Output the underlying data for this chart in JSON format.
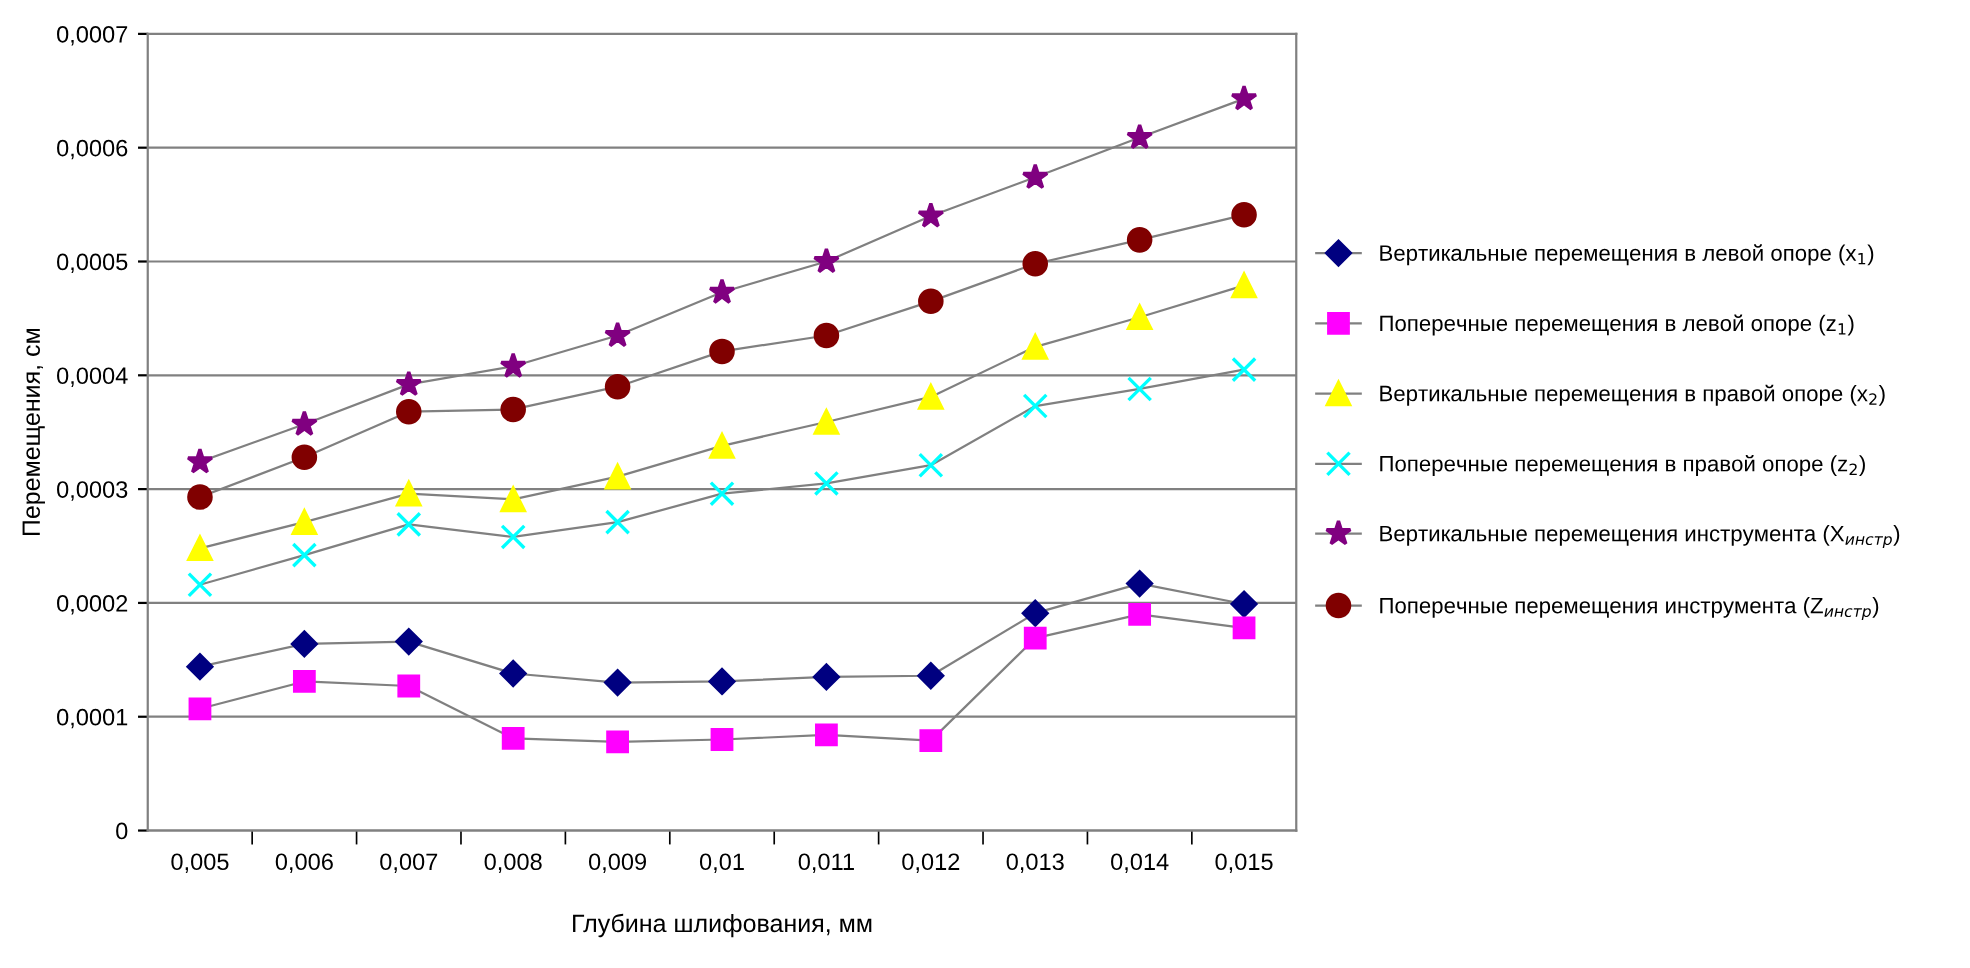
{
  "chart_data": {
    "type": "line",
    "xlabel": "Глубина шлифования, мм",
    "ylabel": "Перемещения, см",
    "categories": [
      "0,005",
      "0,006",
      "0,007",
      "0,008",
      "0,009",
      "0,01",
      "0,011",
      "0,012",
      "0,013",
      "0,014",
      "0,015"
    ],
    "series": [
      {
        "name": "Вертикальные перемещения в левой опоре (x$_{1}$)",
        "color": "#000080",
        "marker": "diamond",
        "values": [
          0.000144,
          0.000164,
          0.000166,
          0.000138,
          0.00013,
          0.000131,
          0.000135,
          0.000136,
          0.000191,
          0.000217,
          0.000199
        ]
      },
      {
        "name": "Поперечные перемещения в левой опоре (z$_{1}$)",
        "color": "#ff00ff",
        "marker": "square",
        "values": [
          0.000107,
          0.000131,
          0.000127,
          8.1e-05,
          7.8e-05,
          8e-05,
          8.4e-05,
          7.9e-05,
          0.000169,
          0.00019,
          0.000178
        ]
      },
      {
        "name": "Вертикальные перемещения в правой опоре (x$_{2}$)",
        "color": "#ffff00",
        "marker": "triangle",
        "values": [
          0.000248,
          0.000271,
          0.000296,
          0.000291,
          0.000311,
          0.000338,
          0.000359,
          0.000381,
          0.000425,
          0.000451,
          0.000479
        ]
      },
      {
        "name": "Поперечные перемещения в правой опоре (z$_{2}$)",
        "color": "#00ffff",
        "marker": "cross",
        "values": [
          0.000216,
          0.000242,
          0.000269,
          0.000258,
          0.000271,
          0.000296,
          0.000305,
          0.000321,
          0.000373,
          0.000388,
          0.000405
        ]
      },
      {
        "name": "Вертикальные перемещения инструмента (X$_{инстр}$)",
        "color": "#800080",
        "marker": "star",
        "values": [
          0.000324,
          0.000357,
          0.000392,
          0.000408,
          0.000435,
          0.000473,
          0.0005,
          0.00054,
          0.000574,
          0.000609,
          0.000643
        ]
      },
      {
        "name": "Поперечные перемещения инструмента (Z$_{инстр}$)",
        "color": "#800000",
        "marker": "circle",
        "values": [
          0.000293,
          0.000328,
          0.000368,
          0.00037,
          0.00039,
          0.000421,
          0.000435,
          0.000465,
          0.000498,
          0.000519,
          0.000541
        ]
      }
    ],
    "ylim": [
      0,
      0.0007
    ],
    "yticks": [
      0,
      {
        "value": 0.0001,
        "label": "0,0001"
      },
      {
        "value": 0.0002,
        "label": "0,0002"
      },
      {
        "value": 0.0003,
        "label": "0,0003"
      },
      {
        "value": 0.0004,
        "label": "0,0004"
      },
      {
        "value": 0.0005,
        "label": "0,0005"
      },
      {
        "value": 0.0006,
        "label": "0,0006"
      },
      {
        "value": 0.0007,
        "label": "0,0007"
      }
    ],
    "grid": "y",
    "legend": "right",
    "line_style": "solid"
  }
}
